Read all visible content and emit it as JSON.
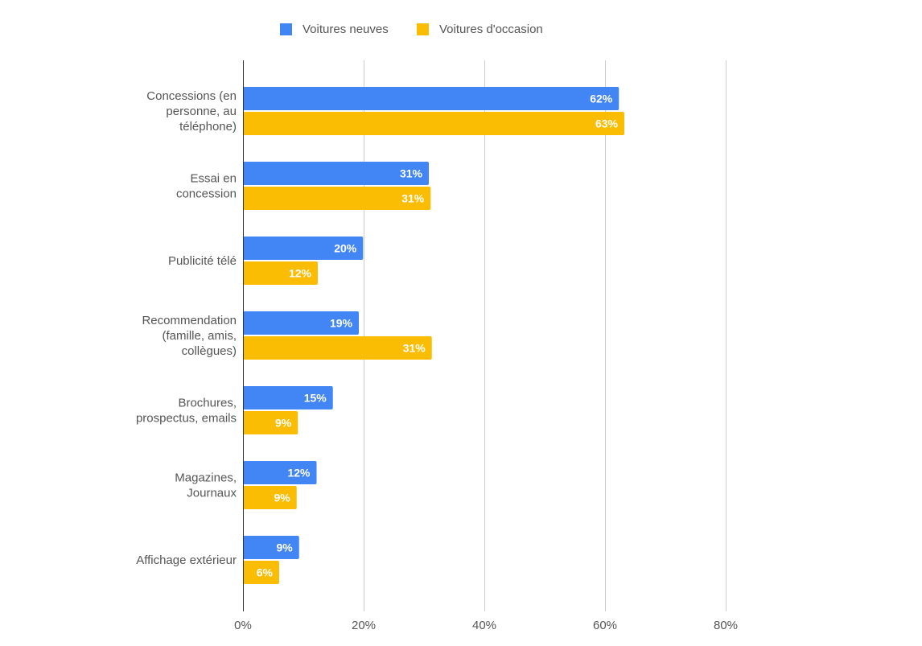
{
  "chart_data": {
    "type": "bar",
    "orientation": "horizontal",
    "title": "",
    "xlabel": "",
    "ylabel": "",
    "categories": [
      [
        "Concessions (en",
        "personne, au",
        "téléphone)"
      ],
      [
        "Essai en",
        "concession"
      ],
      [
        "Publicité télé"
      ],
      [
        "Recommendation",
        "(famille, amis,",
        "collègues)"
      ],
      [
        "Brochures,",
        "prospectus, emails"
      ],
      [
        "Magazines,",
        "Journaux"
      ],
      [
        "Affichage extérieur"
      ]
    ],
    "series": [
      {
        "name": "Voitures neuves",
        "color": "#4285f4",
        "values": [
          62.3,
          30.8,
          19.9,
          19.2,
          14.9,
          12.2,
          9.3
        ],
        "labels": [
          "62%",
          "31%",
          "20%",
          "19%",
          "15%",
          "12%",
          "9%"
        ]
      },
      {
        "name": "Voitures d'occasion",
        "color": "#fbbc04",
        "values": [
          63.2,
          31.1,
          12.4,
          31.3,
          9.1,
          8.9,
          6.0
        ],
        "labels": [
          "63%",
          "31%",
          "12%",
          "31%",
          "9%",
          "9%",
          "6%"
        ]
      }
    ],
    "xlim": [
      0,
      80
    ],
    "xticks": [
      0,
      20,
      40,
      60,
      80
    ],
    "xtick_labels": [
      "0%",
      "20%",
      "40%",
      "60%",
      "80%"
    ],
    "grid": true,
    "legend_position": "top"
  }
}
